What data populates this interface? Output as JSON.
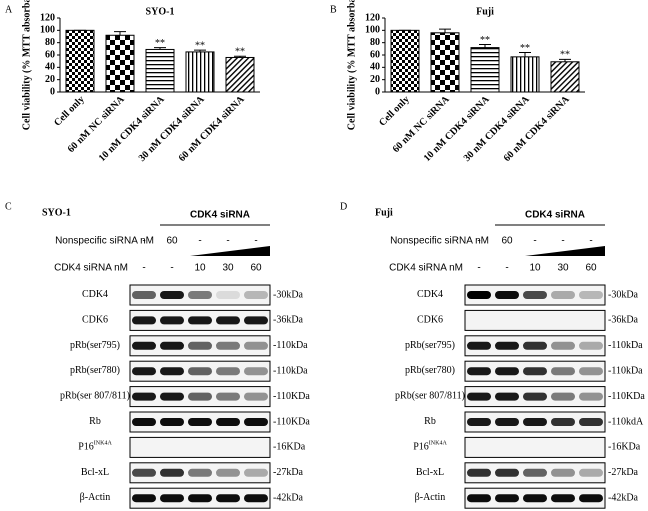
{
  "chart_data": [
    {
      "type": "bar",
      "panel_label": "A",
      "title": "SYO-1",
      "y_label": "Cell viability (% MTT absorbance)",
      "categories": [
        "Cell only",
        "60 nM NC siRNA",
        "10 nM CDK4 siRNA",
        "30 nM CDK4 siRNA",
        "60 nM CDK4 siRNA"
      ],
      "values": [
        100,
        92,
        69,
        65,
        56
      ],
      "errors": [
        0,
        6,
        3,
        3,
        2
      ],
      "significance": [
        null,
        null,
        "**",
        "**",
        "**"
      ],
      "patterns": [
        "checker-fine",
        "checker",
        "hlines",
        "vlines",
        "diagonal"
      ],
      "ylim": [
        0,
        120
      ],
      "yticks": [
        0,
        20,
        40,
        60,
        80,
        100,
        120
      ]
    },
    {
      "type": "bar",
      "panel_label": "B",
      "title": "Fuji",
      "y_label": "Cell viability (% MTT absorbance)",
      "categories": [
        "Cell only",
        "60 nM NC siRNA",
        "10 nM CDK4 siRNA",
        "30 nM CDK4 siRNA",
        "60 nM CDK4 siRNA"
      ],
      "values": [
        100,
        96,
        72,
        57,
        49
      ],
      "errors": [
        0,
        6,
        5,
        7,
        4
      ],
      "significance": [
        null,
        null,
        "**",
        "**",
        "**"
      ],
      "patterns": [
        "checker-fine",
        "checker",
        "hlines",
        "vlines",
        "diagonal"
      ],
      "ylim": [
        0,
        120
      ],
      "yticks": [
        0,
        20,
        40,
        60,
        80,
        100,
        120
      ]
    }
  ],
  "blots": [
    {
      "panel_label": "C",
      "title": "SYO-1",
      "header": "CDK4 siRNA",
      "conditions": [
        {
          "label": "Nonspecific siRNA nM",
          "values": [
            "-",
            "60",
            "-",
            "-",
            "-"
          ]
        },
        {
          "label": "CDK4 siRNA nM",
          "values": [
            "-",
            "-",
            "10",
            "30",
            "60"
          ]
        }
      ],
      "rows": [
        {
          "label": "CDK4",
          "size": "-30kDa",
          "intensity": [
            0.6,
            0.9,
            0.5,
            0.1,
            0.25
          ]
        },
        {
          "label": "CDK6",
          "size": "-36kDa",
          "intensity": [
            0.9,
            0.9,
            0.9,
            0.9,
            0.9
          ]
        },
        {
          "label": "pRb(ser795)",
          "size": "-110kDa",
          "intensity": [
            0.9,
            0.9,
            0.6,
            0.5,
            0.4
          ]
        },
        {
          "label": "pRb(ser780)",
          "size": "-110kDa",
          "intensity": [
            0.9,
            0.9,
            0.6,
            0.5,
            0.4
          ]
        },
        {
          "label": "pRb(ser 807/811)",
          "size": "-110KDa",
          "intensity": [
            0.9,
            0.9,
            0.6,
            0.5,
            0.4
          ]
        },
        {
          "label": "Rb",
          "size": "-110KDa",
          "intensity": [
            0.95,
            0.95,
            0.95,
            0.95,
            0.95
          ]
        },
        {
          "label": "P16",
          "superscript": "INK4A",
          "size": "-16KDa",
          "intensity": [
            0,
            0,
            0,
            0,
            0
          ]
        },
        {
          "label": "Bcl-xL",
          "size": "-27kDa",
          "intensity": [
            0.7,
            0.8,
            0.5,
            0.4,
            0.3
          ]
        },
        {
          "label": "β-Actin",
          "size": "-42kDa",
          "intensity": [
            0.95,
            0.95,
            0.95,
            0.95,
            0.95
          ]
        }
      ]
    },
    {
      "panel_label": "D",
      "title": "Fuji",
      "header": "CDK4 siRNA",
      "conditions": [
        {
          "label": "Nonspecific siRNA nM",
          "values": [
            "-",
            "60",
            "-",
            "-",
            "-"
          ]
        },
        {
          "label": "CDK4 siRNA nM",
          "values": [
            "-",
            "-",
            "10",
            "30",
            "60"
          ]
        }
      ],
      "rows": [
        {
          "label": "CDK4",
          "size": "-30kDa",
          "intensity": [
            1,
            0.95,
            0.7,
            0.3,
            0.25
          ]
        },
        {
          "label": "CDK6",
          "size": "-36kDa",
          "intensity": [
            0,
            0,
            0,
            0,
            0
          ]
        },
        {
          "label": "pRb(ser795)",
          "size": "-110kDa",
          "intensity": [
            0.9,
            0.9,
            0.8,
            0.4,
            0.3
          ]
        },
        {
          "label": "pRb(ser780)",
          "size": "-110kDa",
          "intensity": [
            0.9,
            0.9,
            0.8,
            0.5,
            0.4
          ]
        },
        {
          "label": "pRb(ser 807/811)",
          "size": "-110KDa",
          "intensity": [
            0.9,
            0.9,
            0.8,
            0.5,
            0.4
          ]
        },
        {
          "label": "Rb",
          "size": "-110kdA",
          "intensity": [
            0.9,
            0.9,
            0.9,
            0.8,
            0.8
          ]
        },
        {
          "label": "P16",
          "superscript": "INK4A",
          "size": "-16KDa",
          "intensity": [
            0,
            0,
            0,
            0,
            0
          ]
        },
        {
          "label": "Bcl-xL",
          "size": "-27kDa",
          "intensity": [
            0.8,
            0.8,
            0.6,
            0.4,
            0.3
          ]
        },
        {
          "label": "β-Actin",
          "size": "-42kDa",
          "intensity": [
            0.95,
            0.95,
            0.95,
            0.95,
            0.95
          ]
        }
      ]
    }
  ]
}
